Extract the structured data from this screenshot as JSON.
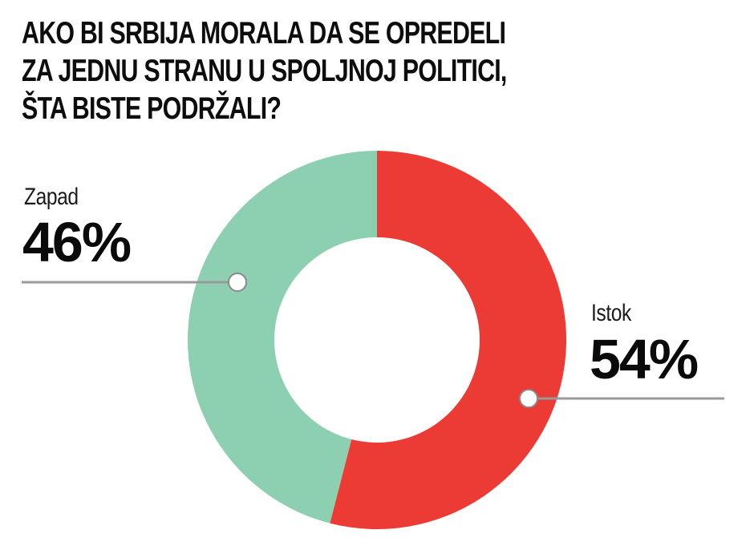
{
  "title": {
    "lines": [
      "AKO BI SRBIJA MORALA DA SE OPREDELI",
      "ZA JEDNU STRANU U SPOLJNOJ POLITICI,",
      "ŠTA BISTE PODRŽALI?"
    ]
  },
  "labels": {
    "zapad": {
      "name": "Zapad",
      "value": "46%"
    },
    "istok": {
      "name": "Istok",
      "value": "54%"
    }
  },
  "colors": {
    "istok": "#ec3b35",
    "zapad": "#8ccfb1",
    "leader": "#9a9a9a",
    "marker_fill": "#ffffff"
  },
  "chart_data": {
    "type": "pie",
    "variant": "donut",
    "title": "AKO BI SRBIJA MORALA DA SE OPREDELI ZA JEDNU STRANU U SPOLJNOJ POLITICI, ŠTA BISTE PODRŽALI?",
    "categories": [
      "Istok",
      "Zapad"
    ],
    "values": [
      54,
      46
    ],
    "unit": "%",
    "colors": [
      "#ec3b35",
      "#8ccfb1"
    ],
    "start_angle": "top (12 o'clock), clockwise",
    "legend": "inline labels with leader lines"
  }
}
